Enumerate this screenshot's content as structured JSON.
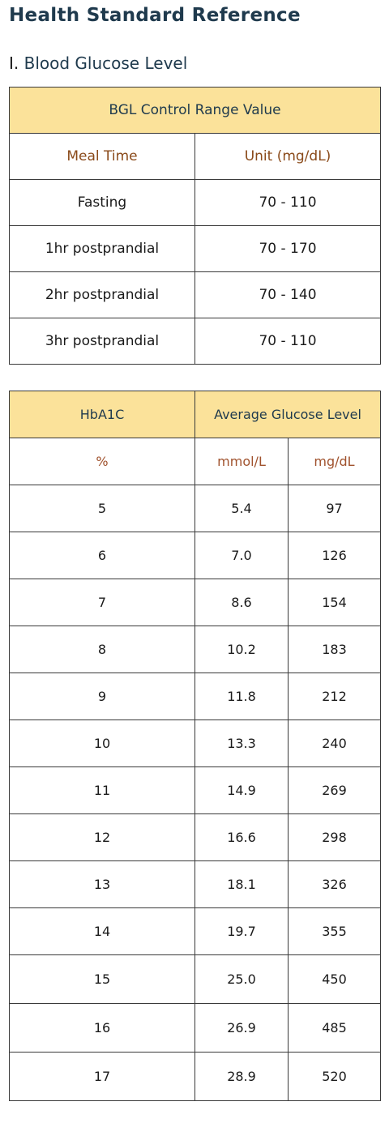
{
  "page_title": "Health Standard Reference",
  "section": {
    "number": "I.",
    "title": "Blood Glucose Level"
  },
  "bgl_table": {
    "title": "BGL Control Range Value",
    "col1": "Meal Time",
    "col2": "Unit (mg/dL)",
    "rows": [
      {
        "meal": "Fasting",
        "range": "70 - 110"
      },
      {
        "meal": "1hr postprandial",
        "range": "70 - 170"
      },
      {
        "meal": "2hr postprandial",
        "range": "70 - 140"
      },
      {
        "meal": "3hr postprandial",
        "range": "70 - 110"
      }
    ]
  },
  "hba1c_table": {
    "col1": "HbA1C",
    "col2": "Average Glucose Level",
    "unit1": "%",
    "unit2": "mmol/L",
    "unit3": "mg/dL",
    "rows": [
      {
        "pct": "5",
        "mmol": "5.4",
        "mg": "97"
      },
      {
        "pct": "6",
        "mmol": "7.0",
        "mg": "126"
      },
      {
        "pct": "7",
        "mmol": "8.6",
        "mg": "154"
      },
      {
        "pct": "8",
        "mmol": "10.2",
        "mg": "183"
      },
      {
        "pct": "9",
        "mmol": "11.8",
        "mg": "212"
      },
      {
        "pct": "10",
        "mmol": "13.3",
        "mg": "240"
      },
      {
        "pct": "11",
        "mmol": "14.9",
        "mg": "269"
      },
      {
        "pct": "12",
        "mmol": "16.6",
        "mg": "298"
      },
      {
        "pct": "13",
        "mmol": "18.1",
        "mg": "326"
      },
      {
        "pct": "14",
        "mmol": "19.7",
        "mg": "355"
      },
      {
        "pct": "15",
        "mmol": "25.0",
        "mg": "450"
      },
      {
        "pct": "16",
        "mmol": "26.9",
        "mg": "485"
      },
      {
        "pct": "17",
        "mmol": "28.9",
        "mg": "520"
      }
    ]
  }
}
